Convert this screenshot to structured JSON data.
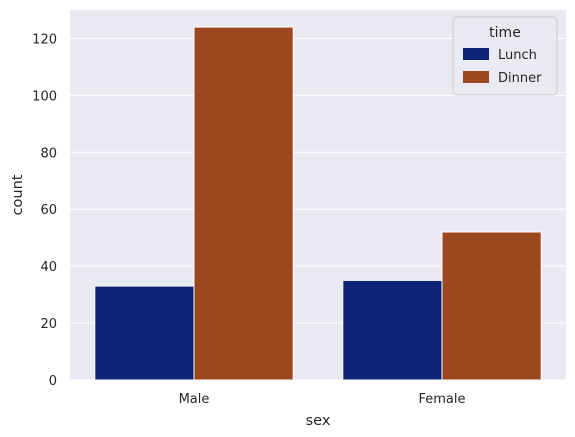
{
  "chart_data": {
    "type": "bar",
    "categories": [
      "Male",
      "Female"
    ],
    "series": [
      {
        "name": "Lunch",
        "values": [
          33,
          35
        ],
        "color": "#0c2473"
      },
      {
        "name": "Dinner",
        "values": [
          124,
          52
        ],
        "color": "#9b4720"
      }
    ],
    "xlabel": "sex",
    "ylabel": "count",
    "ylim": [
      0,
      130
    ],
    "yticks": [
      0,
      20,
      40,
      60,
      80,
      100,
      120
    ],
    "grid": true,
    "legend": {
      "title": "time",
      "placement": "top-right"
    },
    "background_color": "#eaeaf2",
    "grid_color": "#ffffff"
  }
}
